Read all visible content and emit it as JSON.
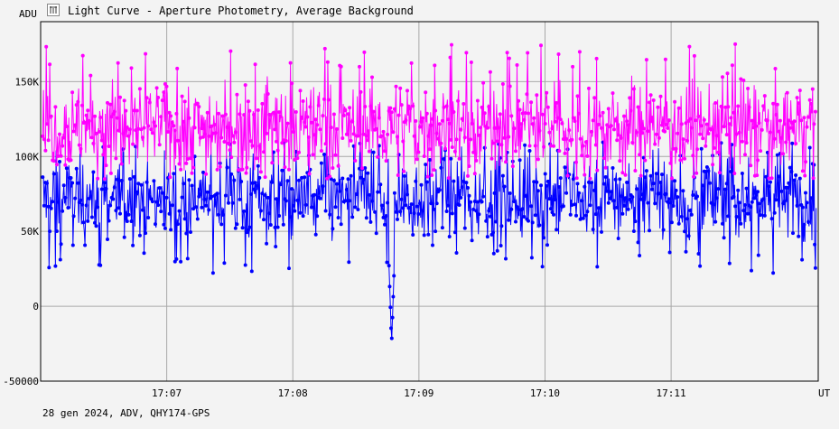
{
  "window": {
    "title": "Light Curve - Aperture Photometry, Average Background",
    "footer": "28 gen 2024, ADV, QHY174-GPS",
    "icon": "light-curve-icon"
  },
  "chart_data": {
    "type": "line",
    "title": "Light Curve - Aperture Photometry, Average Background",
    "ylabel": "ADU",
    "xlabel": "UT",
    "ylim": [
      -50000,
      190000
    ],
    "xlim": [
      "17:06:00",
      "17:12:10"
    ],
    "yticks": [
      {
        "value": -50000,
        "label": "-50000"
      },
      {
        "value": 0,
        "label": "0"
      },
      {
        "value": 50000,
        "label": "50K"
      },
      {
        "value": 100000,
        "label": "100K"
      },
      {
        "value": 150000,
        "label": "150K"
      }
    ],
    "xticks": [
      "17:07",
      "17:08",
      "17:09",
      "17:10",
      "17:11"
    ],
    "grid": true,
    "series": [
      {
        "color": "#ff00ff",
        "marker": "circle",
        "mean": 120000,
        "spread_low": 85000,
        "spread_high": 175000
      },
      {
        "color": "#0000ff",
        "marker": "circle",
        "mean": 72000,
        "spread_low": 22000,
        "spread_high": 110000,
        "dip": {
          "time": "17:08:47",
          "min": -25000
        }
      }
    ]
  }
}
